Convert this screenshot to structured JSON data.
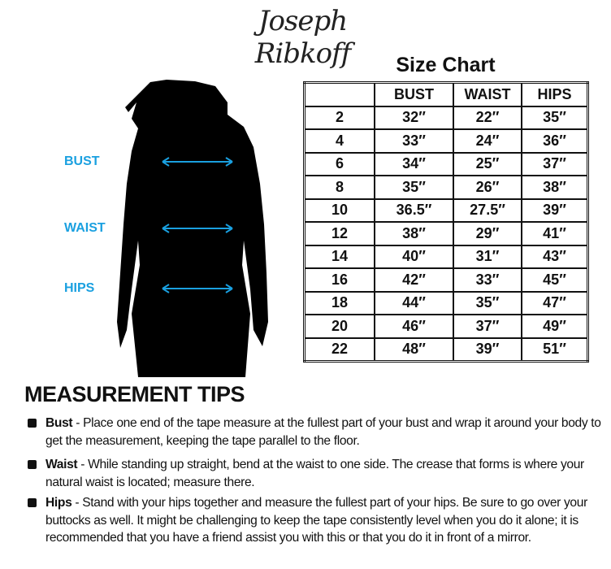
{
  "brand": "Joseph Ribkoff",
  "title": "Size Chart",
  "table": {
    "headers": [
      "",
      "BUST",
      "WAIST",
      "HIPS"
    ],
    "rows": [
      [
        "2",
        "32″",
        "22″",
        "35″"
      ],
      [
        "4",
        "33″",
        "24″",
        "36″"
      ],
      [
        "6",
        "34″",
        "25″",
        "37″"
      ],
      [
        "8",
        "35″",
        "26″",
        "38″"
      ],
      [
        "10",
        "36.5″",
        "27.5″",
        "39″"
      ],
      [
        "12",
        "38″",
        "29″",
        "41″"
      ],
      [
        "14",
        "40″",
        "31″",
        "43″"
      ],
      [
        "16",
        "42″",
        "33″",
        "45″"
      ],
      [
        "18",
        "44″",
        "35″",
        "47″"
      ],
      [
        "20",
        "46″",
        "37″",
        "49″"
      ],
      [
        "22",
        "48″",
        "39″",
        "51″"
      ]
    ]
  },
  "figure_labels": {
    "bust": "BUST",
    "waist": "WAIST",
    "hips": "HIPS"
  },
  "accent_color": "#1aa0e0",
  "tips": {
    "heading": "MEASUREMENT TIPS",
    "items": [
      {
        "term": "Bust",
        "text": " - Place one end of the tape measure at the fullest part of your bust and wrap it around your body to get the measurement, keeping the tape parallel to the floor."
      },
      {
        "term": "Waist",
        "text": " - While standing up straight, bend at the waist to one side. The crease that forms is where your natural waist is located; measure there."
      },
      {
        "term": "Hips",
        "text": " - Stand with your hips together and measure the fullest part of your hips. Be sure to go over your buttocks as well. It might be challenging to keep the tape consistently level when you do it alone; it is recommended that you have a friend assist you with this or that you do it in front of a mirror."
      }
    ]
  }
}
